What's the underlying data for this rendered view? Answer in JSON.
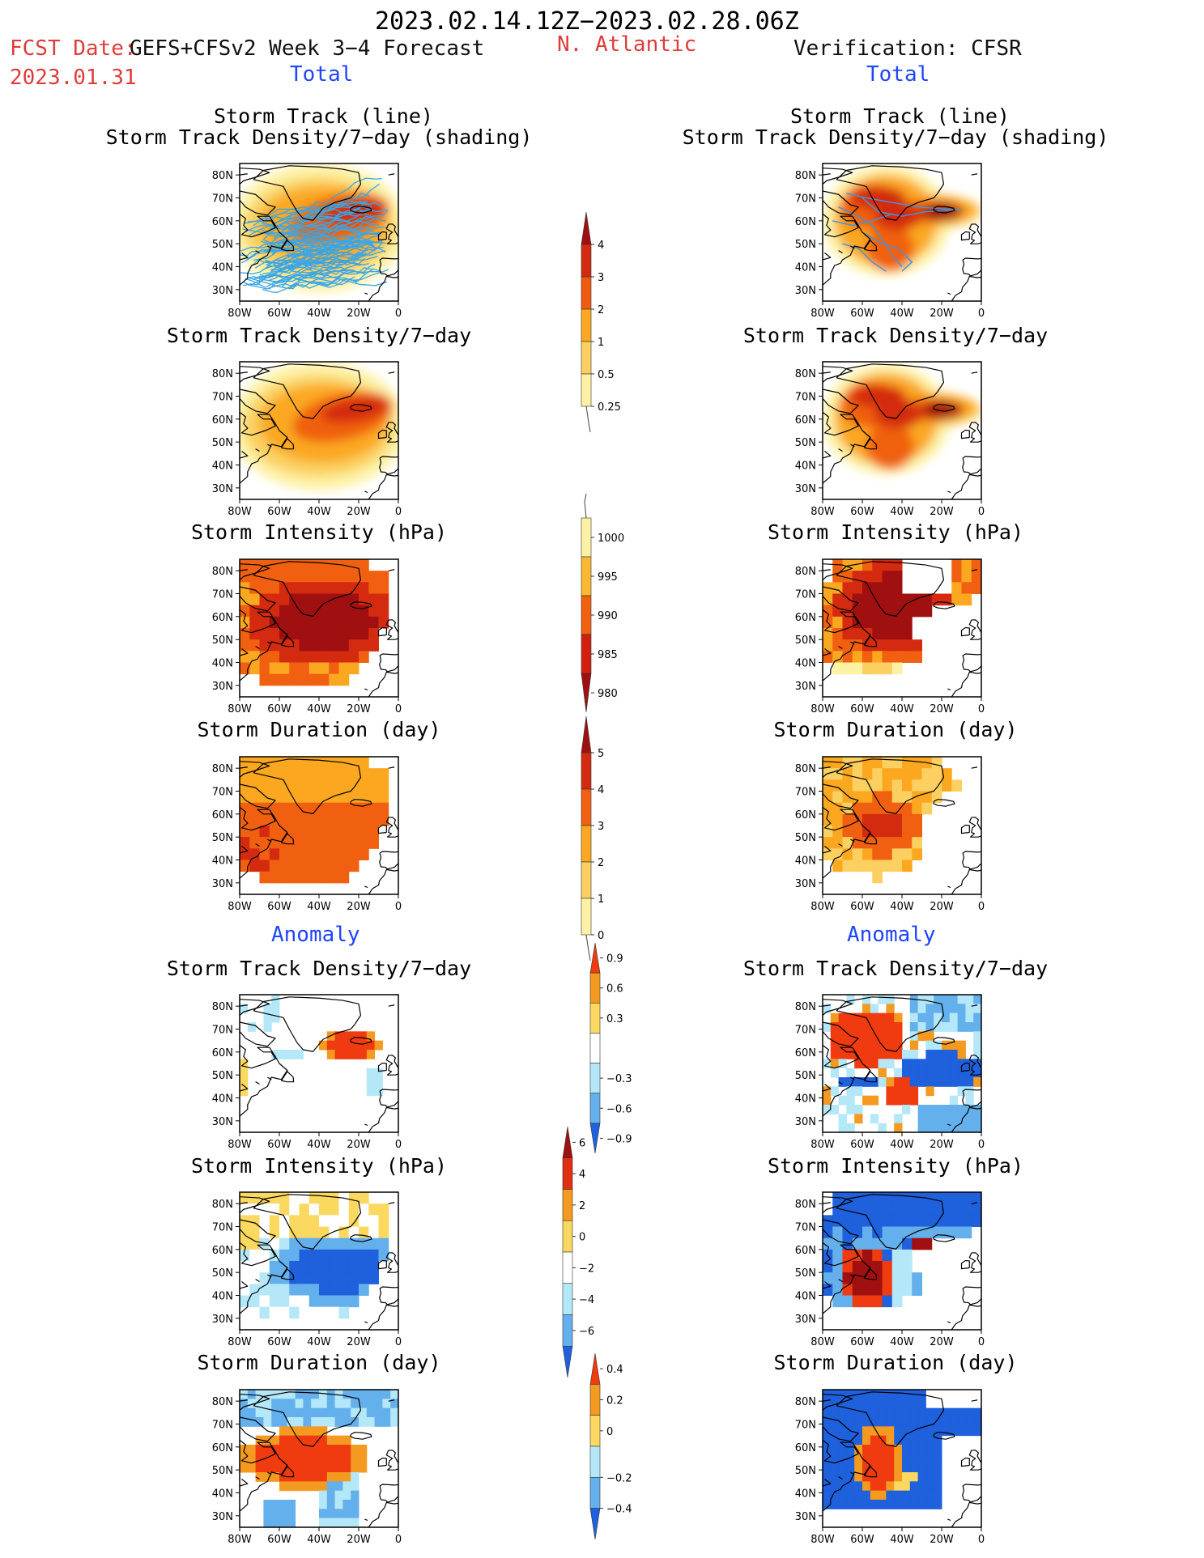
{
  "header": {
    "period": "2023.02.14.12Z−2023.02.28.06Z",
    "fcst_label": "FCST Date:",
    "forecast_title": "GEFS+CFSv2 Week 3−4 Forecast",
    "fcst_date": "2023.01.31",
    "region": "N. Atlantic",
    "verification": "Verification: CFSR",
    "total_left": "Total",
    "total_right": "Total",
    "anomaly_left": "Anomaly",
    "anomaly_right": "Anomaly"
  },
  "panel_titles": {
    "r0a": "Storm Track (line)",
    "r0b": "Storm Track Density/7−day (shading)",
    "r1": "Storm Track Density/7−day",
    "r2": "Storm Intensity (hPa)",
    "r3": "Storm Duration (day)",
    "r4": "Storm Track Density/7−day",
    "r5": "Storm Intensity (hPa)",
    "r6": "Storm Duration (day)"
  },
  "map_axes": {
    "lat_labels": [
      "80N",
      "70N",
      "60N",
      "50N",
      "40N",
      "30N"
    ],
    "lon_labels": [
      "80W",
      "60W",
      "40W",
      "20W",
      "0"
    ]
  },
  "colorbars": [
    {
      "id": "density_total",
      "labels": [
        "4",
        "3",
        "2",
        "1",
        "0.5",
        "0.25"
      ],
      "colors": [
        "#a01010",
        "#d42a10",
        "#f05a10",
        "#fba820",
        "#fbd060",
        "#fdf1a4"
      ],
      "direction": "up"
    },
    {
      "id": "intensity_total",
      "labels": [
        "1000",
        "995",
        "990",
        "985",
        "980"
      ],
      "colors": [
        "#fdf1a4",
        "#fbb830",
        "#f06010",
        "#d22010",
        "#a01010"
      ],
      "direction": "down"
    },
    {
      "id": "duration_total",
      "labels": [
        "5",
        "4",
        "3",
        "2",
        "1",
        "0"
      ],
      "colors": [
        "#a01010",
        "#d42a10",
        "#f06010",
        "#fba820",
        "#fbd060",
        "#fdf1a4"
      ],
      "direction": "up"
    },
    {
      "id": "density_anom",
      "labels": [
        "0.9",
        "0.6",
        "0.3",
        "−0.3",
        "−0.6",
        "−0.9"
      ],
      "colors": [
        "#f03a10",
        "#f49a20",
        "#fbd860",
        "#ffffff",
        "#b4e8f8",
        "#64b0ec",
        "#1f60dc"
      ],
      "direction": "both"
    },
    {
      "id": "intensity_anom",
      "labels": [
        "6",
        "4",
        "2",
        "0",
        "−2",
        "−4",
        "−6"
      ],
      "colors": [
        "#a01010",
        "#e03010",
        "#f49a20",
        "#fbd860",
        "#ffffff",
        "#b4e8f8",
        "#64b0ec",
        "#1f60dc"
      ],
      "direction": "both"
    },
    {
      "id": "duration_anom",
      "labels": [
        "0.4",
        "0.2",
        "0",
        "−0.2",
        "−0.4"
      ],
      "colors": [
        "#f03a10",
        "#f49a20",
        "#fbd860",
        "#b4e8f8",
        "#64b0ec",
        "#1f60dc"
      ],
      "direction": "both"
    }
  ],
  "map_colors": {
    "dens": [
      "#fdf1a4",
      "#fbd060",
      "#fba820",
      "#f06010",
      "#d42a10",
      "#a01010"
    ],
    "anom": [
      "#1f60dc",
      "#64b0ec",
      "#b4e8f8",
      "#ffffff",
      "#fbd860",
      "#f49a20",
      "#f03a10",
      "#a01010"
    ],
    "track_line": "#38a6e8",
    "cfsr_track_line": "#4a90d8"
  }
}
